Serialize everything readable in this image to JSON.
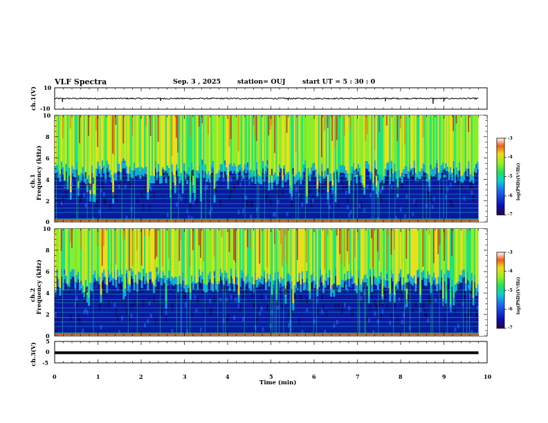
{
  "header": {
    "title": "VLF Spectra",
    "date": "Sep. 3  , 2025",
    "station": "station= OUJ",
    "start_ut": "start  UT  =   5  : 30 : 0"
  },
  "chart_data": [
    {
      "type": "line",
      "name": "ch1-waveform",
      "ylabel": "ch.1(V)",
      "ylim": [
        -10,
        10
      ],
      "yticks": [
        "10",
        "-10"
      ],
      "xlim": [
        0,
        10
      ],
      "data_extent_min": 9.8,
      "baseline_v": 0,
      "spikes": [
        {
          "t": 0.18,
          "v": -3.2
        },
        {
          "t": 2.45,
          "v": -2.3
        },
        {
          "t": 5.4,
          "v": -1.8
        },
        {
          "t": 7.65,
          "v": -2.6
        },
        {
          "t": 8.75,
          "v": -4.8
        },
        {
          "t": 9.0,
          "v": -3.0
        }
      ]
    },
    {
      "type": "heatmap",
      "name": "ch1-spectrogram",
      "ylabel_line1": "ch.1",
      "ylabel_line2": "Frequency  (kHz)",
      "ylim_khz": [
        0,
        10
      ],
      "yticks": [
        "0",
        "2",
        "4",
        "6",
        "8",
        "10"
      ],
      "xlim_min": [
        0,
        10
      ],
      "data_extent_min": 9.8,
      "noise_floor_khz": 5.0,
      "color_range_log_psd": [
        -7,
        -3
      ],
      "colorbar_label": "log(PSD)(V²/Hz)",
      "colorbar_ticks": [
        "-3",
        "-4",
        "-5",
        "-6",
        "-7"
      ]
    },
    {
      "type": "heatmap",
      "name": "ch2-spectrogram",
      "ylabel_line1": "ch.2",
      "ylabel_line2": "Frequency  (kHz)",
      "ylim_khz": [
        0,
        10
      ],
      "yticks": [
        "0",
        "2",
        "4",
        "6",
        "8",
        "10"
      ],
      "xlim_min": [
        0,
        10
      ],
      "data_extent_min": 9.8,
      "noise_floor_khz": 5.5,
      "color_range_log_psd": [
        -7,
        -3
      ],
      "colorbar_label": "log(PSD)(V²/Hz)",
      "colorbar_ticks": [
        "-3",
        "-4",
        "-5",
        "-6",
        "-7"
      ]
    },
    {
      "type": "line",
      "name": "ch3-waveform",
      "ylabel": "ch.3(V)",
      "ylim": [
        -5,
        5
      ],
      "yticks": [
        "5",
        "0",
        "-5"
      ],
      "xlim": [
        0,
        10
      ],
      "data_extent_min": 9.8,
      "constant_v": -0.3
    }
  ],
  "xaxis": {
    "label": "Time  (min)",
    "ticks": [
      "0",
      "1",
      "2",
      "3",
      "4",
      "5",
      "6",
      "7",
      "8",
      "9",
      "10"
    ]
  },
  "colors": {
    "spectrum_ramp": [
      "#0a0a5a",
      "#0a1aa0",
      "#1e4ee6",
      "#18c8d8",
      "#22e07a",
      "#8aee2a",
      "#e6e01e",
      "#e67a14",
      "#c01414"
    ]
  }
}
